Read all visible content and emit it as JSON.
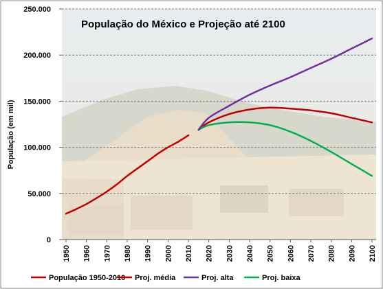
{
  "chart_data": {
    "type": "line",
    "title": "População do México e Projeção até 2100",
    "ylabel": "População (em mil)",
    "xlabel": "",
    "ylim": [
      0,
      250000
    ],
    "yticks": [
      "0",
      "50.000",
      "100.000",
      "150.000",
      "200.000",
      "250.000"
    ],
    "xticks": [
      "1950",
      "1960",
      "1970",
      "1980",
      "1990",
      "2000",
      "2010",
      "2020",
      "2030",
      "2040",
      "2050",
      "2060",
      "2070",
      "2080",
      "2090",
      "2100"
    ],
    "grid": true,
    "legend_position": "bottom",
    "series": [
      {
        "name": "População 1950-2010",
        "color": "#c00000",
        "x": [
          1950,
          1955,
          1960,
          1965,
          1970,
          1975,
          1980,
          1985,
          1990,
          1995,
          2000,
          2005,
          2010
        ],
        "values": [
          28000,
          33000,
          38500,
          45000,
          52000,
          60000,
          69000,
          77000,
          85000,
          93000,
          100000,
          106000,
          113000
        ]
      },
      {
        "name": "Proj. média",
        "color": "#c00000",
        "x": [
          2015,
          2020,
          2030,
          2040,
          2050,
          2060,
          2070,
          2080,
          2090,
          2100
        ],
        "values": [
          119000,
          127000,
          136000,
          141000,
          143000,
          142000,
          140000,
          137000,
          132000,
          127000
        ]
      },
      {
        "name": "Proj. alta",
        "color": "#7030a0",
        "x": [
          2015,
          2020,
          2030,
          2040,
          2050,
          2060,
          2070,
          2080,
          2090,
          2100
        ],
        "values": [
          119000,
          132000,
          145000,
          157000,
          167000,
          176000,
          186000,
          196000,
          207000,
          218000
        ]
      },
      {
        "name": "Proj. baixa",
        "color": "#00b050",
        "x": [
          2015,
          2020,
          2030,
          2040,
          2050,
          2060,
          2070,
          2080,
          2090,
          2100
        ],
        "values": [
          119000,
          124000,
          127000,
          127000,
          124000,
          117000,
          107000,
          95000,
          82000,
          69000
        ]
      }
    ]
  }
}
